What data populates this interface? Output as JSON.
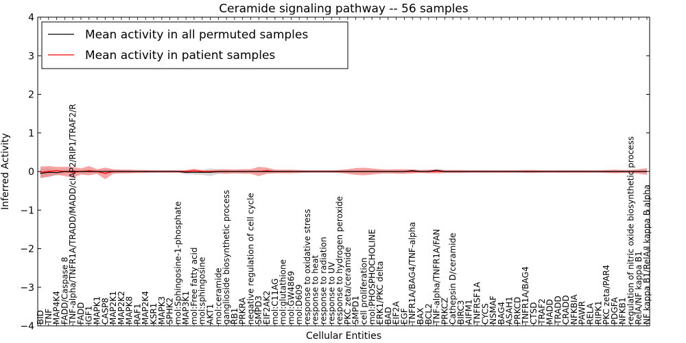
{
  "chart_data": {
    "type": "line",
    "title": "Ceramide signaling pathway -- 56 samples",
    "xlabel": "Cellular Entities",
    "ylabel": "Inferred Activity",
    "ylim": [
      -4,
      4
    ],
    "yticks": [
      4,
      3,
      2,
      1,
      0,
      -1,
      -2,
      -3,
      -4
    ],
    "ytick_labels": [
      "4",
      "3",
      "2",
      "1",
      "0",
      "−1",
      "−2",
      "−3",
      "−4"
    ],
    "grid": false,
    "legend": {
      "position": "top-left",
      "entries": [
        {
          "label": "Mean activity in all permuted samples",
          "color": "#000000"
        },
        {
          "label": "Mean activity in patient samples",
          "color": "#ff0000"
        }
      ]
    },
    "categories": [
      "BID",
      "TNF",
      "MAP4K4",
      "FADD/Caspase 8",
      "TNF-alpha/TNFR1A/TRADD/MADD/cIAP2/RIP1/TRAF2/R",
      "FADD",
      "IGF1",
      "MAPK1",
      "CASP8",
      "MAP2K1",
      "MAP2K2",
      "MAPK8",
      "RAF1",
      "MAP2K4",
      "KSR1",
      "MAPK3",
      "SPHK2",
      "mol:Sphingosine-1-phosphate",
      "MAP3K1",
      "mol:Free fatty acid",
      "mol:sphingosine",
      "AKT1",
      "mol:ceramide",
      "ganglioside biosynthetic process",
      "RB1",
      "PRKRA",
      "negative regulation of cell cycle",
      "SMPD3",
      "EIF2AK2",
      "mol:C11AG",
      "mol:glutathione",
      "mol:GW4869",
      "mol:D609",
      "response to oxidative stress",
      "response to heat",
      "response to radiation",
      "response to UV",
      "response to hydrogen peroxide",
      "PKC zeta/ceramide",
      "SMPD1",
      "cell proliferation",
      "mol:PHOSPHOCHOLINE",
      "ERK1/PKC delta",
      "BAD",
      "EIF2A",
      "EGF",
      "TNFR1A/BAG4/TNF-alpha",
      "BAX",
      "BCL2",
      "TNF-alpha/TNFR1A/FAN",
      "PRKCZ",
      "Cathepsin D/ceramide",
      "BIRC3",
      "AIFM1",
      "TNFRSF1A",
      "CYCS",
      "NSMAF",
      "BAG4",
      "ASAH1",
      "PRKCD",
      "TNFR1A/BAG4",
      "CTSD",
      "TRAF2",
      "MADD",
      "TRADD",
      "CRADD",
      "NFKBIA",
      "PAWR",
      "RELA",
      "RIPK1",
      "PKC zeta/PAR4",
      "PDGFA",
      "NFKB1",
      "regulation of nitric oxide biosynthetic process",
      "RelA/NF kappa B1",
      "NF kappa B1/RelA/I kappa B alpha"
    ],
    "series": [
      {
        "name": "Mean activity in all permuted samples",
        "color": "#000000",
        "band_color": "#bbbbbb",
        "values": [
          -0.05,
          -0.02,
          -0.03,
          0.0,
          0.0,
          0.0,
          0.0,
          0.0,
          0.0,
          0.0,
          0.0,
          0.0,
          0.0,
          0.0,
          0.0,
          0.0,
          0.0,
          0.0,
          -0.02,
          -0.02,
          -0.02,
          -0.02,
          0.0,
          0.0,
          0.0,
          0.0,
          0.0,
          0.0,
          0.0,
          0.0,
          0.0,
          0.0,
          0.0,
          0.0,
          0.0,
          0.0,
          0.0,
          0.0,
          0.0,
          0.0,
          0.0,
          0.0,
          0.0,
          0.0,
          0.0,
          0.0,
          0.02,
          0.0,
          0.0,
          0.03,
          0.0,
          0.0,
          0.0,
          0.0,
          0.0,
          0.0,
          0.0,
          0.0,
          0.0,
          0.0,
          0.0,
          0.0,
          0.0,
          0.0,
          0.0,
          0.0,
          0.0,
          0.0,
          0.0,
          0.0,
          0.0,
          0.0,
          0.0,
          0.0,
          0.0,
          0.0
        ],
        "spread": [
          0.12,
          0.1,
          0.08,
          0.05,
          0.04,
          0.04,
          0.04,
          0.04,
          0.05,
          0.04,
          0.04,
          0.04,
          0.03,
          0.03,
          0.03,
          0.03,
          0.03,
          0.03,
          0.05,
          0.06,
          0.07,
          0.1,
          0.06,
          0.04,
          0.03,
          0.03,
          0.03,
          0.03,
          0.03,
          0.03,
          0.03,
          0.03,
          0.03,
          0.03,
          0.03,
          0.03,
          0.03,
          0.03,
          0.04,
          0.04,
          0.04,
          0.04,
          0.03,
          0.03,
          0.03,
          0.03,
          0.04,
          0.03,
          0.03,
          0.04,
          0.03,
          0.03,
          0.03,
          0.03,
          0.03,
          0.03,
          0.03,
          0.03,
          0.03,
          0.03,
          0.03,
          0.03,
          0.03,
          0.03,
          0.03,
          0.03,
          0.03,
          0.03,
          0.03,
          0.03,
          0.03,
          0.03,
          0.03,
          0.03,
          0.03,
          0.03
        ]
      },
      {
        "name": "Mean activity in patient samples",
        "color": "#ff0000",
        "band_color": "#ee6666",
        "values": [
          -0.02,
          0.0,
          0.02,
          0.0,
          -0.02,
          0.0,
          0.02,
          0.0,
          -0.05,
          0.0,
          0.0,
          0.0,
          0.0,
          0.0,
          0.0,
          0.0,
          0.0,
          0.0,
          0.0,
          0.02,
          0.0,
          0.0,
          0.0,
          0.0,
          0.0,
          0.0,
          0.0,
          0.0,
          0.02,
          0.0,
          0.0,
          0.0,
          0.0,
          0.0,
          0.0,
          0.0,
          0.0,
          0.0,
          0.0,
          0.0,
          0.0,
          0.0,
          0.0,
          0.0,
          0.0,
          0.0,
          0.0,
          0.0,
          0.0,
          0.0,
          0.0,
          0.0,
          0.0,
          0.0,
          0.0,
          0.0,
          0.0,
          0.0,
          0.0,
          0.0,
          0.0,
          0.0,
          0.0,
          0.0,
          0.0,
          0.0,
          0.0,
          0.0,
          0.0,
          0.0,
          0.0,
          0.0,
          0.0,
          0.0,
          0.0,
          0.0
        ],
        "spread": [
          0.15,
          0.14,
          0.1,
          0.12,
          0.14,
          0.08,
          0.12,
          0.06,
          0.15,
          0.06,
          0.05,
          0.05,
          0.04,
          0.04,
          0.03,
          0.03,
          0.03,
          0.03,
          0.04,
          0.05,
          0.03,
          0.03,
          0.05,
          0.06,
          0.05,
          0.06,
          0.06,
          0.12,
          0.08,
          0.05,
          0.05,
          0.05,
          0.04,
          0.03,
          0.03,
          0.03,
          0.03,
          0.04,
          0.06,
          0.09,
          0.1,
          0.08,
          0.06,
          0.05,
          0.06,
          0.06,
          0.05,
          0.04,
          0.05,
          0.05,
          0.04,
          0.04,
          0.04,
          0.03,
          0.03,
          0.03,
          0.03,
          0.03,
          0.03,
          0.03,
          0.04,
          0.04,
          0.03,
          0.03,
          0.03,
          0.03,
          0.03,
          0.03,
          0.03,
          0.03,
          0.04,
          0.05,
          0.04,
          0.04,
          0.06,
          0.09
        ]
      }
    ]
  }
}
